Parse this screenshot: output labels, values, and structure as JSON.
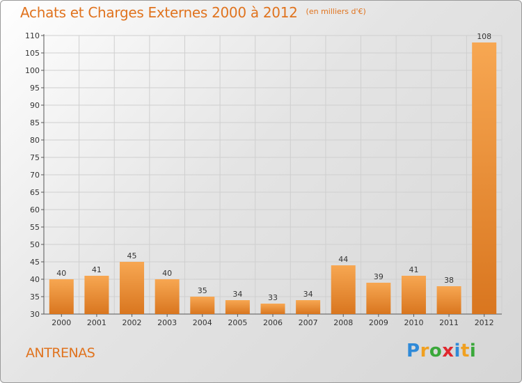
{
  "title": "Achats et Charges Externes 2000 à 2012",
  "unit_label": "(en milliers d'€)",
  "commune": "ANTRENAS",
  "logo": {
    "text": "Proxiti",
    "letters": [
      {
        "char": "P",
        "color": "#2f8ad8"
      },
      {
        "char": "r",
        "color": "#f0a020"
      },
      {
        "char": "o",
        "color": "#3aa83a"
      },
      {
        "char": "x",
        "color": "#e0282e"
      },
      {
        "char": "i",
        "color": "#2f8ad8"
      },
      {
        "char": "t",
        "color": "#f0a020"
      },
      {
        "char": "i",
        "color": "#3aa83a"
      }
    ]
  },
  "colors": {
    "bar_light": "#f7a752",
    "bar_dark": "#d9761f",
    "title": "#e0731e",
    "grid": "#cfcfcf"
  },
  "chart_data": {
    "type": "bar",
    "categories": [
      "2000",
      "2001",
      "2002",
      "2003",
      "2004",
      "2005",
      "2006",
      "2007",
      "2008",
      "2009",
      "2010",
      "2011",
      "2012"
    ],
    "values": [
      40,
      41,
      45,
      40,
      35,
      34,
      33,
      34,
      44,
      39,
      41,
      38,
      108
    ],
    "ylim": [
      30,
      110
    ],
    "yticks": [
      30,
      35,
      40,
      45,
      50,
      55,
      60,
      65,
      70,
      75,
      80,
      85,
      90,
      95,
      100,
      105,
      110
    ],
    "grid": true,
    "data_labels": true
  }
}
